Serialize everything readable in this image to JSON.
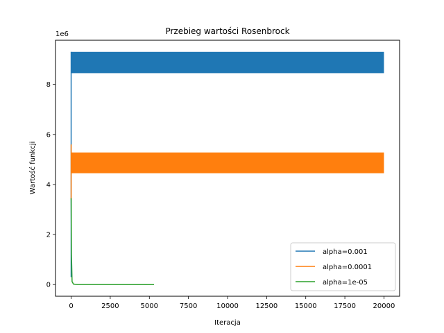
{
  "chart_data": {
    "type": "line",
    "title": "Przebieg wartości Rosenbrock",
    "xlabel": "Iteracja",
    "ylabel": "Wartość funkcji",
    "y_offset_label": "1e6",
    "xlim": [
      -1000,
      21000
    ],
    "ylim": [
      -0.465,
      9.765
    ],
    "x_ticks": [
      0,
      2500,
      5000,
      7500,
      10000,
      12500,
      15000,
      17500,
      20000
    ],
    "x_tick_labels": [
      "0",
      "2500",
      "5000",
      "7500",
      "10000",
      "12500",
      "15000",
      "17500",
      "20000"
    ],
    "y_ticks": [
      0,
      2,
      4,
      6,
      8
    ],
    "y_tick_labels": [
      "0",
      "2",
      "4",
      "6",
      "8"
    ],
    "grid": false,
    "legend_position": "lower-right",
    "series": [
      {
        "name": "alpha=0.001",
        "color": "#1f77b4",
        "style": "oscillating-band",
        "initial_spike": [
          [
            0,
            0.3
          ],
          [
            0,
            9.3
          ]
        ],
        "band": {
          "x_start": 0,
          "x_end": 20000,
          "y_low": 8.45,
          "y_high": 9.3
        }
      },
      {
        "name": "alpha=0.0001",
        "color": "#ff7f0e",
        "style": "oscillating-band",
        "initial_spike": [
          [
            0,
            3.4
          ],
          [
            0,
            5.6
          ]
        ],
        "band": {
          "x_start": 0,
          "x_end": 20000,
          "y_low": 4.45,
          "y_high": 5.28
        }
      },
      {
        "name": "alpha=1e-05",
        "color": "#2ca02c",
        "style": "line",
        "points": [
          [
            0,
            3.45
          ],
          [
            20,
            1.2
          ],
          [
            60,
            0.12
          ],
          [
            150,
            0.02
          ],
          [
            400,
            0.003
          ],
          [
            5300,
            0.0
          ]
        ]
      }
    ]
  }
}
